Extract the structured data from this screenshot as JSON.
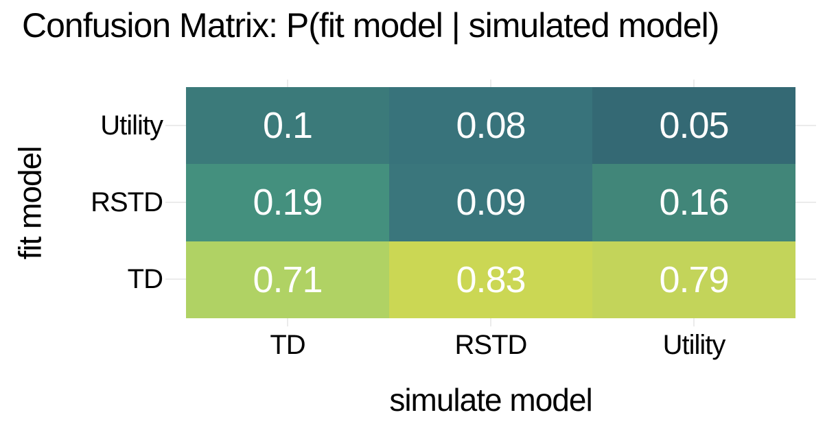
{
  "title": "Confusion Matrix: P(fit model | simulated model)",
  "colors": {
    "background": "#ffffff",
    "gridline": "#ebebeb",
    "axis_text": "#000000",
    "cell_text": "#ffffff"
  },
  "chart_data": {
    "type": "heatmap",
    "title": "Confusion Matrix: P(fit model | simulated model)",
    "xlabel": "simulate model",
    "ylabel": "fit model",
    "x_categories": [
      "TD",
      "RSTD",
      "Utility"
    ],
    "y_categories_top_to_bottom": [
      "Utility",
      "RSTD",
      "TD"
    ],
    "grid": "major gridlines visible outside tile area only",
    "legend": "none",
    "values_by_row_top_to_bottom": [
      [
        0.1,
        0.08,
        0.05
      ],
      [
        0.19,
        0.09,
        0.16
      ],
      [
        0.71,
        0.83,
        0.79
      ]
    ],
    "cells": [
      {
        "fit": "Utility",
        "sim": "TD",
        "label": "0.1",
        "color": "#3b7a7a"
      },
      {
        "fit": "Utility",
        "sim": "RSTD",
        "label": "0.08",
        "color": "#38737b"
      },
      {
        "fit": "Utility",
        "sim": "Utility",
        "label": "0.05",
        "color": "#346974"
      },
      {
        "fit": "RSTD",
        "sim": "TD",
        "label": "0.19",
        "color": "#44907e"
      },
      {
        "fit": "RSTD",
        "sim": "RSTD",
        "label": "0.09",
        "color": "#3a767c"
      },
      {
        "fit": "RSTD",
        "sim": "Utility",
        "label": "0.16",
        "color": "#418679"
      },
      {
        "fit": "TD",
        "sim": "TD",
        "label": "0.71",
        "color": "#b0d264"
      },
      {
        "fit": "TD",
        "sim": "RSTD",
        "label": "0.83",
        "color": "#cbd754"
      },
      {
        "fit": "TD",
        "sim": "Utility",
        "label": "0.79",
        "color": "#c3d45a"
      }
    ]
  }
}
